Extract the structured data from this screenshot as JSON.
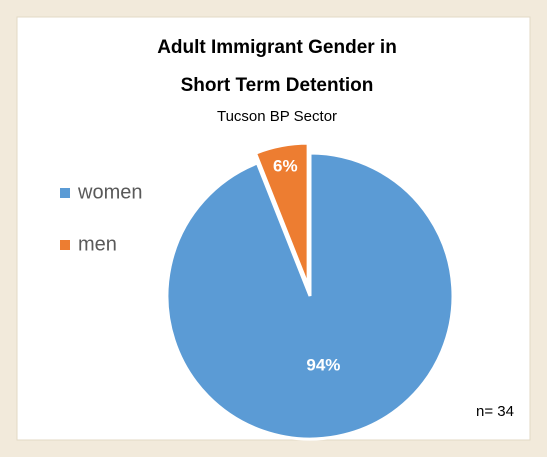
{
  "chart_data": {
    "type": "pie",
    "title": [
      "Adult Immigrant Gender in",
      "Short Term Detention"
    ],
    "subtitle": "Tucson BP Sector",
    "categories": [
      "women",
      "men"
    ],
    "values": [
      94,
      6
    ],
    "value_labels": [
      "94%",
      "6%"
    ],
    "colors": [
      "#5b9bd5",
      "#ed7d31"
    ],
    "exploded": [
      false,
      true
    ],
    "legend": "left",
    "annotation": "n= 34"
  }
}
